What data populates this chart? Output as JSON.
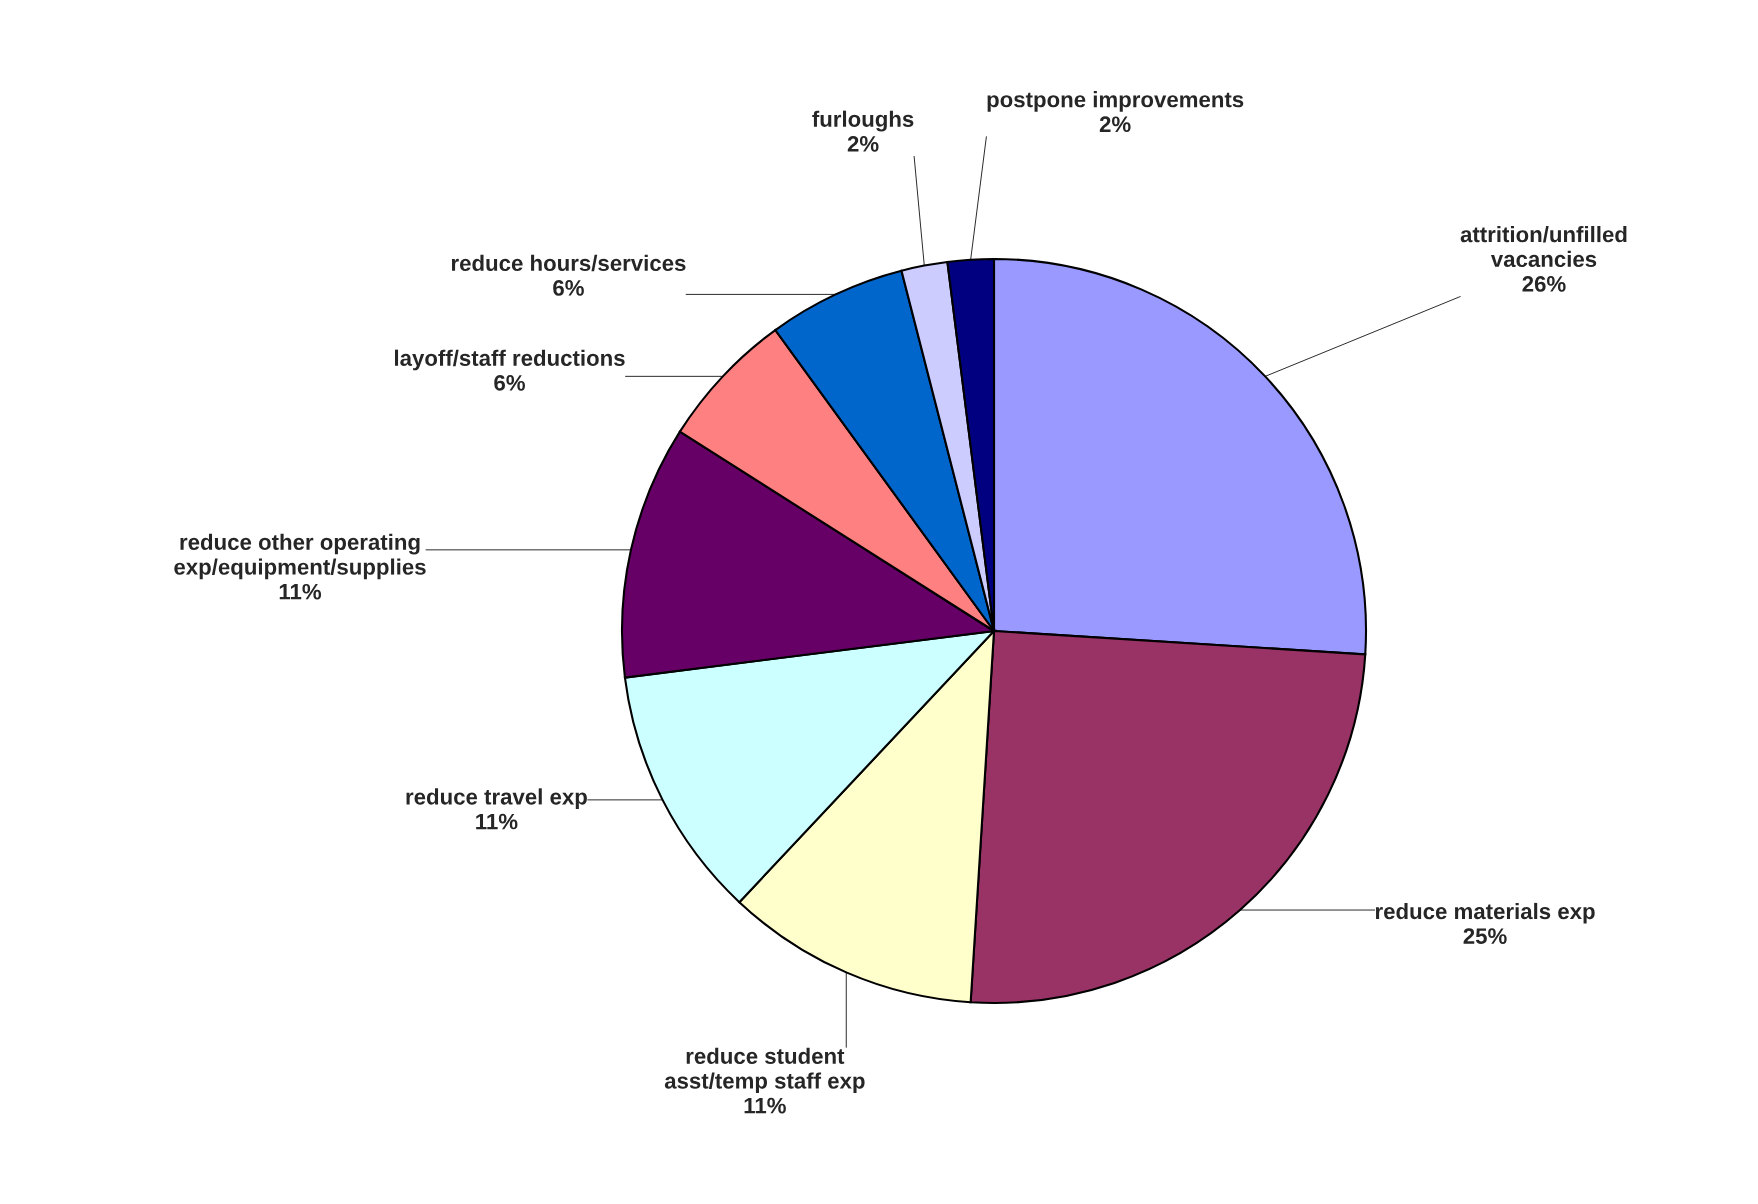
{
  "chart_data": {
    "type": "pie",
    "categories": [
      "attrition/unfilled\nvacancies",
      "reduce materials exp",
      "reduce student\nasst/temp staff exp",
      "reduce travel exp",
      "reduce other operating\nexp/equipment/supplies",
      "layoff/staff reductions",
      "reduce hours/services",
      "furloughs",
      "postpone improvements"
    ],
    "values": [
      26,
      25,
      11,
      11,
      11,
      6,
      6,
      2,
      2
    ],
    "value_labels": [
      "26%",
      "25%",
      "11%",
      "11%",
      "11%",
      "6%",
      "6%",
      "2%",
      "2%"
    ],
    "colors": [
      "#9999ff",
      "#993366",
      "#ffffcc",
      "#ccffff",
      "#660066",
      "#ff8080",
      "#0066cc",
      "#ccccff",
      "#000080"
    ]
  }
}
